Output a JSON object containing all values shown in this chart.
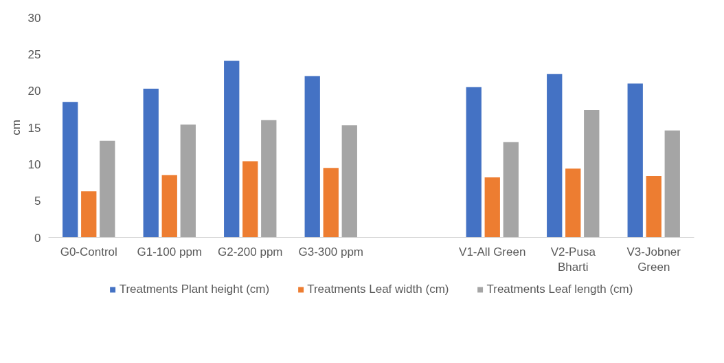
{
  "chart_data": {
    "type": "bar",
    "ylabel": "cm",
    "categories": [
      "G0-Control",
      "G1-100 ppm",
      "G2-200 ppm",
      "G3-300 ppm",
      null,
      "V1-All Green",
      "V2-Pusa Bharti",
      "V3-Jobner Green"
    ],
    "series": [
      {
        "name": "Treatments Plant height (cm)",
        "color": "#4472c4",
        "values": [
          18.5,
          20.3,
          24.1,
          22.0,
          null,
          20.5,
          22.3,
          21.0
        ]
      },
      {
        "name": "Treatments Leaf width (cm)",
        "color": "#ed7d31",
        "values": [
          6.3,
          8.5,
          10.4,
          9.5,
          null,
          8.2,
          9.4,
          8.4
        ]
      },
      {
        "name": "Treatments Leaf length (cm)",
        "color": "#a5a5a5",
        "values": [
          13.2,
          15.4,
          16.0,
          15.3,
          null,
          13.0,
          17.4,
          14.6
        ]
      }
    ],
    "ylim": [
      0,
      30
    ],
    "yticks": [
      0,
      5,
      10,
      15,
      20,
      25,
      30
    ],
    "grid": false,
    "legend": "bottom"
  }
}
